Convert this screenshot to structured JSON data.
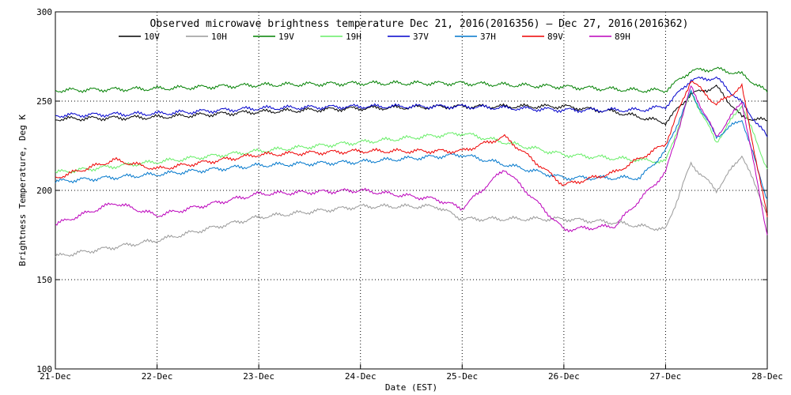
{
  "chart_data": {
    "type": "line",
    "title": "Observed microwave brightness temperature Dec 21, 2016(2016356) – Dec 27, 2016(2016362)",
    "xlabel": "Date (EST)",
    "ylabel": "Brightness Temperature, Deg K",
    "x_unit": "day",
    "x_range": [
      "2016-12-21",
      "2016-12-28"
    ],
    "ylim": [
      100,
      300
    ],
    "y_ticks": [
      100,
      150,
      200,
      250,
      300
    ],
    "x_tick_labels": [
      "21-Dec",
      "22-Dec",
      "23-Dec",
      "24-Dec",
      "25-Dec",
      "26-Dec",
      "27-Dec",
      "28-Dec"
    ],
    "grid": "dotted",
    "legend": "top",
    "series": [
      {
        "name": "10V",
        "color": "#000000",
        "x": [
          "2016-12-21",
          "2016-12-22",
          "2016-12-23",
          "2016-12-24",
          "2016-12-25",
          "2016-12-26",
          "2016-12-26T12",
          "2016-12-27",
          "2016-12-27T06",
          "2016-12-27T12",
          "2016-12-27T18",
          "2016-12-28"
        ],
        "values": [
          240,
          241,
          244,
          246,
          247,
          247,
          244,
          238,
          254,
          258,
          241,
          239
        ]
      },
      {
        "name": "10H",
        "color": "#999999",
        "x": [
          "2016-12-21",
          "2016-12-22",
          "2016-12-23",
          "2016-12-24",
          "2016-12-24T18",
          "2016-12-25",
          "2016-12-25T12",
          "2016-12-26",
          "2016-12-26T12",
          "2016-12-27",
          "2016-12-27T06",
          "2016-12-27T12",
          "2016-12-27T18",
          "2016-12-28"
        ],
        "values": [
          163,
          172,
          185,
          191,
          191,
          184,
          184,
          184,
          182,
          178,
          215,
          200,
          220,
          187
        ]
      },
      {
        "name": "19V",
        "color": "#008000",
        "x": [
          "2016-12-21",
          "2016-12-22",
          "2016-12-23",
          "2016-12-24",
          "2016-12-25",
          "2016-12-26",
          "2016-12-26T18",
          "2016-12-27",
          "2016-12-27T06",
          "2016-12-27T12",
          "2016-12-27T18",
          "2016-12-28"
        ],
        "values": [
          256,
          257,
          259,
          260,
          260,
          258,
          256,
          256,
          267,
          268,
          265,
          255
        ]
      },
      {
        "name": "19H",
        "color": "#66ee66",
        "x": [
          "2016-12-21",
          "2016-12-22",
          "2016-12-23",
          "2016-12-24",
          "2016-12-25",
          "2016-12-26",
          "2016-12-27",
          "2016-12-27T06",
          "2016-12-27T12",
          "2016-12-27T18",
          "2016-12-28"
        ],
        "values": [
          210,
          216,
          222,
          227,
          232,
          220,
          216,
          255,
          227,
          248,
          212
        ]
      },
      {
        "name": "37V",
        "color": "#0000cc",
        "x": [
          "2016-12-21",
          "2016-12-22",
          "2016-12-23",
          "2016-12-24",
          "2016-12-25",
          "2016-12-26",
          "2016-12-26T18",
          "2016-12-27",
          "2016-12-27T06",
          "2016-12-27T12",
          "2016-12-27T18",
          "2016-12-28"
        ],
        "values": [
          242,
          243,
          246,
          247,
          247,
          245,
          245,
          247,
          262,
          263,
          249,
          230
        ]
      },
      {
        "name": "37H",
        "color": "#0077cc",
        "x": [
          "2016-12-21",
          "2016-12-22",
          "2016-12-23",
          "2016-12-24",
          "2016-12-25",
          "2016-12-26",
          "2016-12-26T18",
          "2016-12-27",
          "2016-12-27T06",
          "2016-12-27T12",
          "2016-12-27T18",
          "2016-12-28"
        ],
        "values": [
          205,
          209,
          214,
          216,
          220,
          207,
          207,
          222,
          255,
          230,
          240,
          195
        ]
      },
      {
        "name": "89V",
        "color": "#ee0000",
        "x": [
          "2016-12-21",
          "2016-12-21T14",
          "2016-12-22",
          "2016-12-23",
          "2016-12-24",
          "2016-12-25",
          "2016-12-25T10",
          "2016-12-26",
          "2016-12-26T12",
          "2016-12-27",
          "2016-12-27T06",
          "2016-12-27T12",
          "2016-12-27T18",
          "2016-12-28"
        ],
        "values": [
          207,
          217,
          212,
          220,
          222,
          222,
          230,
          203,
          210,
          226,
          262,
          248,
          258,
          185
        ]
      },
      {
        "name": "89H",
        "color": "#bb00bb",
        "x": [
          "2016-12-21",
          "2016-12-21T14",
          "2016-12-22",
          "2016-12-23",
          "2016-12-24",
          "2016-12-24T18",
          "2016-12-25",
          "2016-12-25T10",
          "2016-12-26",
          "2016-12-26T12",
          "2016-12-27",
          "2016-12-27T06",
          "2016-12-27T12",
          "2016-12-27T18",
          "2016-12-28"
        ],
        "values": [
          181,
          193,
          186,
          198,
          200,
          195,
          190,
          212,
          178,
          180,
          210,
          258,
          230,
          250,
          175
        ]
      }
    ]
  }
}
